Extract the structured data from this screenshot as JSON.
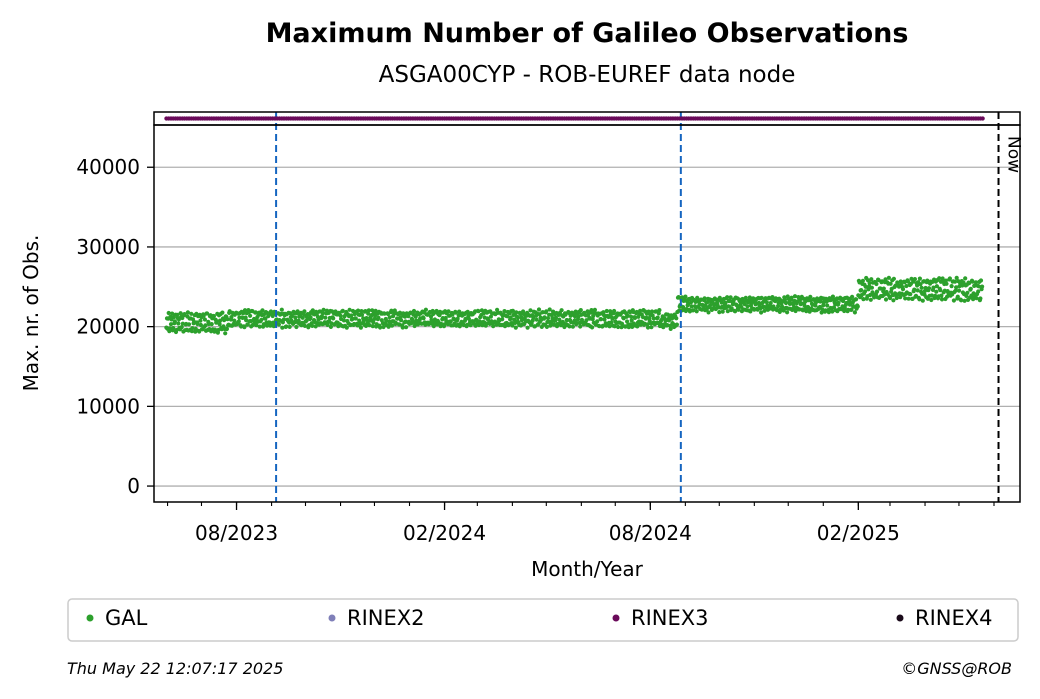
{
  "chart_data": {
    "type": "scatter",
    "title": "Maximum Number of Galileo Observations",
    "subtitle": "ASGA00CYP - ROB-EUREF data node",
    "xlabel": "Month/Year",
    "ylabel": "Max. nr. of Obs.",
    "x_ticks": [
      "08/2023",
      "02/2024",
      "08/2024",
      "02/2025"
    ],
    "y_ticks": [
      "0",
      "10000",
      "20000",
      "30000",
      "40000"
    ],
    "ylim": [
      -2000,
      45300
    ],
    "grid": "horizontal",
    "legend_position": "bottom",
    "now_label": "Now",
    "series": [
      {
        "name": "GAL",
        "color": "#2ca02c",
        "segments": [
          {
            "from": "2023-05-31",
            "to": "2023-07-25",
            "base": 20500,
            "amplitude": 1200
          },
          {
            "from": "2023-07-25",
            "to": "2024-08-10",
            "base": 21000,
            "amplitude": 1000
          },
          {
            "from": "2024-08-10",
            "to": "2024-08-25",
            "base": 20700,
            "amplitude": 900
          },
          {
            "from": "2024-08-25",
            "to": "2025-02-01",
            "base": 22800,
            "amplitude": 900
          },
          {
            "from": "2025-02-01",
            "to": "2025-05-22",
            "base": 24700,
            "amplitude": 1300
          }
        ]
      },
      {
        "name": "RINEX2",
        "color": "#7f7fb8",
        "values": []
      },
      {
        "name": "RINEX3",
        "color": "#6a0a5a",
        "from": "2023-05-31",
        "to": "2025-05-22"
      },
      {
        "name": "RINEX4",
        "color": "#1a0a1a",
        "values": []
      }
    ],
    "vlines": [
      {
        "date": "2023-09-05",
        "color": "#1565c0",
        "style": "dashed"
      },
      {
        "date": "2024-08-28",
        "color": "#1565c0",
        "style": "dashed"
      },
      {
        "date": "2025-06-05",
        "color": "#000000",
        "style": "dashed",
        "label": "Now"
      }
    ]
  },
  "footer": {
    "timestamp": "Thu May 22 12:07:17 2025",
    "credit": "©GNSS@ROB"
  }
}
